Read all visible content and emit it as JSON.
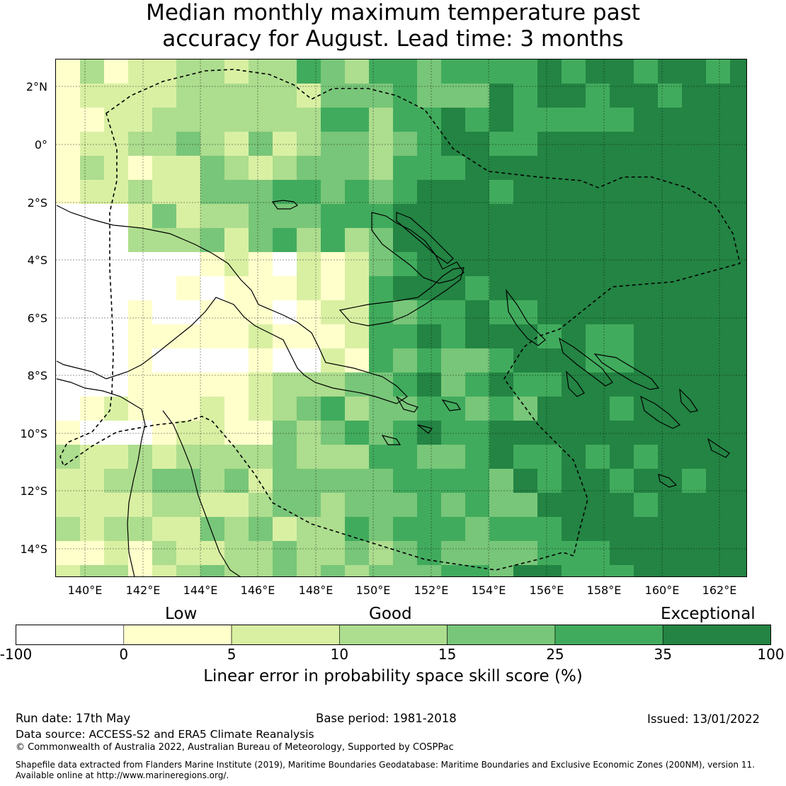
{
  "title": {
    "line1": "Median monthly maximum temperature past",
    "line2": "accuracy for August. Lead time: 3 months"
  },
  "axes": {
    "lat_labels": [
      "2°N",
      "0°",
      "2°S",
      "4°S",
      "6°S",
      "8°S",
      "10°S",
      "12°S",
      "14°S"
    ],
    "lon_labels": [
      "140°E",
      "142°E",
      "144°E",
      "146°E",
      "148°E",
      "150°E",
      "152°E",
      "154°E",
      "156°E",
      "158°E",
      "160°E",
      "162°E"
    ]
  },
  "colorbar": {
    "categories": [
      "Low",
      "Good",
      "Exceptional"
    ],
    "ticks": [
      "-100",
      "0",
      "5",
      "10",
      "15",
      "25",
      "35",
      "100"
    ],
    "colors": [
      "#ffffff",
      "#ffffcc",
      "#d9f0a3",
      "#addd8e",
      "#78c679",
      "#41ab5d",
      "#238443"
    ],
    "label": "Linear error in probability space skill score (%)"
  },
  "map_colors": {
    "ocean_base": "#78c679",
    "coast": "#000000",
    "eez_boundary": "#000000"
  },
  "footer": {
    "run_date": "Run date: 17th May",
    "base_period": "Base period: 1981-2018",
    "issued": "Issued: 13/01/2022",
    "data_source": "Data source: ACCESS-S2 and ERA5 Climate Reanalysis",
    "copyright": "© Commonwealth of Australia 2022, Australian Bureau of Meteorology, Supported by COSPPac",
    "shapefile1": "Shapefile data extracted from Flanders Marine Institute (2019), Maritime Boundaries Geodatabase: Maritime Boundaries and Exclusive Economic Zones (200NM), version 11.",
    "shapefile2": "Available online at http://www.marineregions.org/."
  }
}
